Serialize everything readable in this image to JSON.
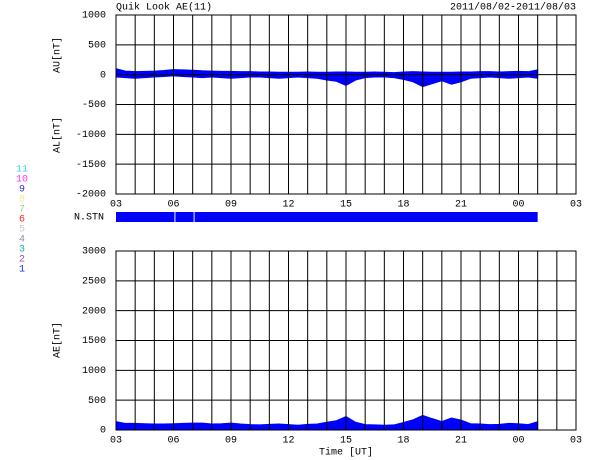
{
  "title": "Quik Look AE(11)",
  "date_range": "2011/08/02-2011/08/03",
  "legend": {
    "labels": [
      "11",
      "10",
      "9",
      "8",
      "7",
      "6",
      "5",
      "4",
      "3",
      "2",
      "1"
    ],
    "colors": [
      "#33dddd",
      "#ff33ff",
      "#3333cc",
      "#eeee88",
      "#88dd88",
      "#ff2222",
      "#cccccc",
      "#8888aa",
      "#22aaaa",
      "#aa44aa",
      "#2222ff"
    ]
  },
  "chart_data": [
    {
      "type": "area",
      "ylabels": [
        "AU[nT]",
        "AL[nT]"
      ],
      "x": [
        3,
        3.5,
        4,
        4.5,
        5,
        5.5,
        6,
        6.5,
        7,
        7.5,
        8,
        8.5,
        9,
        9.5,
        10,
        10.5,
        11,
        11.5,
        12,
        12.5,
        13,
        13.5,
        14,
        14.5,
        15,
        15.5,
        16,
        16.5,
        17,
        17.5,
        18,
        18.5,
        19,
        19.5,
        20,
        20.5,
        21,
        21.5,
        22,
        22.5,
        23,
        23.5,
        24,
        24.5,
        25
      ],
      "series": [
        {
          "name": "AU",
          "color": "#0000ff",
          "values": [
            100,
            60,
            50,
            55,
            60,
            70,
            85,
            80,
            75,
            65,
            60,
            55,
            55,
            50,
            50,
            45,
            45,
            40,
            40,
            40,
            45,
            40,
            40,
            45,
            45,
            40,
            40,
            45,
            40,
            35,
            45,
            50,
            45,
            40,
            40,
            40,
            45,
            45,
            50,
            50,
            45,
            50,
            55,
            50,
            80
          ]
        },
        {
          "name": "AL",
          "color": "#0000ff",
          "values": [
            -40,
            -50,
            -60,
            -50,
            -40,
            -30,
            -20,
            -30,
            -40,
            -50,
            -40,
            -50,
            -60,
            -50,
            -40,
            -40,
            -50,
            -60,
            -50,
            -40,
            -50,
            -60,
            -90,
            -110,
            -180,
            -90,
            -50,
            -40,
            -40,
            -50,
            -80,
            -120,
            -200,
            -150,
            -100,
            -160,
            -120,
            -60,
            -50,
            -40,
            -50,
            -60,
            -50,
            -40,
            -60
          ]
        }
      ],
      "xlim": [
        3,
        27
      ],
      "ylim": [
        -2000,
        1000
      ],
      "xticks": [
        {
          "value": 3,
          "label": "03"
        },
        {
          "value": 6,
          "label": "06"
        },
        {
          "value": 9,
          "label": "09"
        },
        12,
        15,
        18,
        21,
        {
          "value": 24,
          "label": "00"
        },
        {
          "value": 27,
          "label": "03"
        }
      ],
      "yticks": [
        -2000,
        -1500,
        -1000,
        -500,
        0,
        500,
        1000
      ],
      "xgrid": [
        3,
        4,
        5,
        6,
        7,
        8,
        9,
        10,
        11,
        12,
        13,
        14,
        15,
        16,
        17,
        18,
        19,
        20,
        21,
        22,
        23,
        24,
        25,
        26,
        27
      ]
    },
    {
      "type": "strip",
      "label": "N.STN",
      "color": "#0000ff",
      "x_ranges": [
        [
          3,
          6.05
        ],
        [
          6.1,
          7.05
        ],
        [
          7.1,
          25
        ]
      ],
      "values": [
        11,
        11,
        11
      ],
      "xlim": [
        3,
        27
      ]
    },
    {
      "type": "area",
      "ylabels": [
        "AE[nT]"
      ],
      "xlabel": "Time [UT]",
      "x": [
        3,
        3.5,
        4,
        4.5,
        5,
        5.5,
        6,
        6.5,
        7,
        7.5,
        8,
        8.5,
        9,
        9.5,
        10,
        10.5,
        11,
        11.5,
        12,
        12.5,
        13,
        13.5,
        14,
        14.5,
        15,
        15.5,
        16,
        16.5,
        17,
        17.5,
        18,
        18.5,
        19,
        19.5,
        20,
        20.5,
        21,
        21.5,
        22,
        22.5,
        23,
        23.5,
        24,
        24.5,
        25
      ],
      "series": [
        {
          "name": "AE",
          "color": "#0000ff",
          "values": [
            140,
            110,
            110,
            105,
            100,
            100,
            105,
            110,
            115,
            115,
            100,
            105,
            115,
            100,
            90,
            85,
            95,
            100,
            90,
            80,
            95,
            100,
            130,
            155,
            225,
            130,
            90,
            85,
            80,
            85,
            125,
            170,
            245,
            190,
            140,
            200,
            165,
            105,
            100,
            90,
            95,
            110,
            105,
            90,
            140
          ]
        }
      ],
      "xlim": [
        3,
        27
      ],
      "ylim": [
        0,
        3000
      ],
      "xticks": [
        {
          "value": 3,
          "label": "03"
        },
        {
          "value": 6,
          "label": "06"
        },
        {
          "value": 9,
          "label": "09"
        },
        12,
        15,
        18,
        21,
        {
          "value": 24,
          "label": "00"
        },
        {
          "value": 27,
          "label": "03"
        }
      ],
      "yticks": [
        0,
        500,
        1000,
        1500,
        2000,
        2500,
        3000
      ],
      "xgrid": [
        3,
        4,
        5,
        6,
        7,
        8,
        9,
        10,
        11,
        12,
        13,
        14,
        15,
        16,
        17,
        18,
        19,
        20,
        21,
        22,
        23,
        24,
        25,
        26,
        27
      ]
    }
  ]
}
